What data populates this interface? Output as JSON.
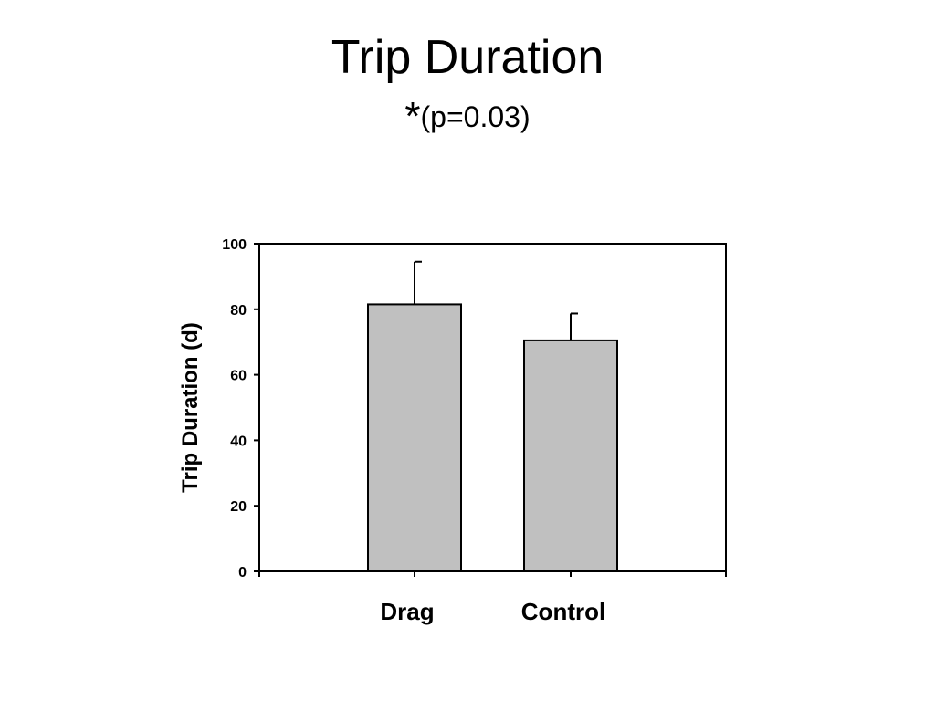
{
  "slide": {
    "title": "Trip Duration",
    "subtitle_mark": "*",
    "subtitle_text": "(p=0.03)"
  },
  "chart_data": {
    "type": "bar",
    "categories": [
      "Drag",
      "Control"
    ],
    "values": [
      81.5,
      70.5
    ],
    "error_bars": [
      13,
      8.2
    ],
    "ylabel": "Trip Duration (d)",
    "xlabel": "",
    "ylim": [
      0,
      100
    ],
    "yticks": [
      0,
      20,
      40,
      60,
      80,
      100
    ],
    "bar_color": "#c0c0c0",
    "grid": false,
    "legend": "none"
  }
}
